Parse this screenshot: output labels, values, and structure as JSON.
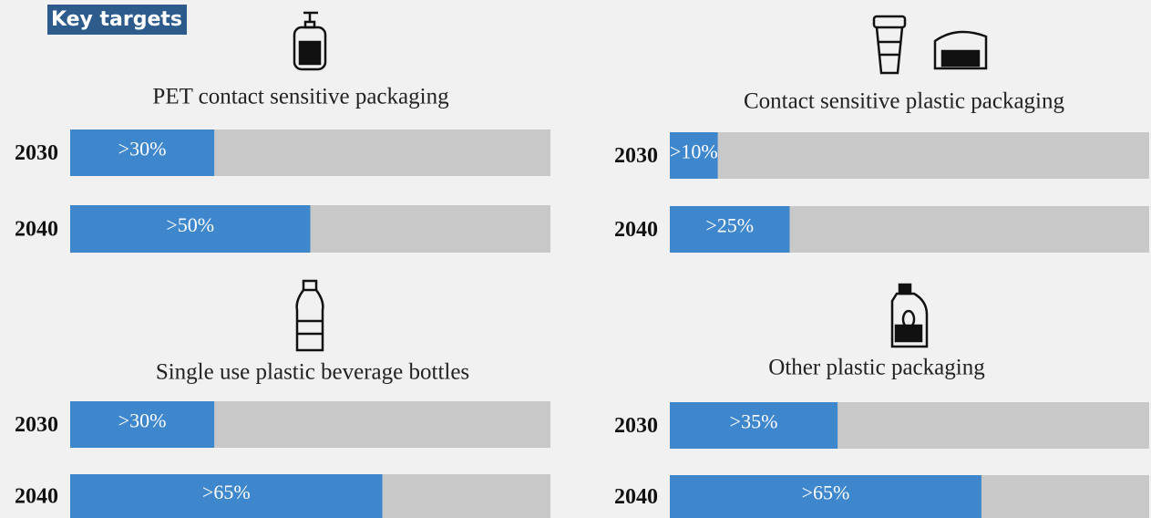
{
  "title": "Key targets",
  "chart_data": [
    {
      "type": "hbar",
      "title": "PET contact sensitive packaging",
      "categories": [
        "2030",
        "2040"
      ],
      "values": [
        30,
        50
      ],
      "value_labels": [
        ">30%",
        ">50%"
      ],
      "color": "#3f87cc",
      "track_color": "#c8c8c8",
      "xlim": [
        0,
        100
      ]
    },
    {
      "type": "hbar",
      "title": "Contact sensitive plastic packaging",
      "categories": [
        "2030",
        "2040"
      ],
      "values": [
        10,
        25
      ],
      "value_labels": [
        ">10%",
        ">25%"
      ],
      "color": "#3f87cc",
      "track_color": "#c8c8c8",
      "xlim": [
        0,
        100
      ]
    },
    {
      "type": "hbar",
      "title": "Single use plastic beverage bottles",
      "categories": [
        "2030",
        "2040"
      ],
      "values": [
        30,
        65
      ],
      "value_labels": [
        ">30%",
        ">65%"
      ],
      "color": "#3f87cc",
      "track_color": "#c8c8c8",
      "xlim": [
        0,
        100
      ]
    },
    {
      "type": "hbar",
      "title": "Other plastic packaging",
      "categories": [
        "2030",
        "2040"
      ],
      "values": [
        35,
        65
      ],
      "value_labels": [
        ">35%",
        ">65%"
      ],
      "color": "#3f87cc",
      "track_color": "#c8c8c8",
      "xlim": [
        0,
        100
      ]
    }
  ]
}
